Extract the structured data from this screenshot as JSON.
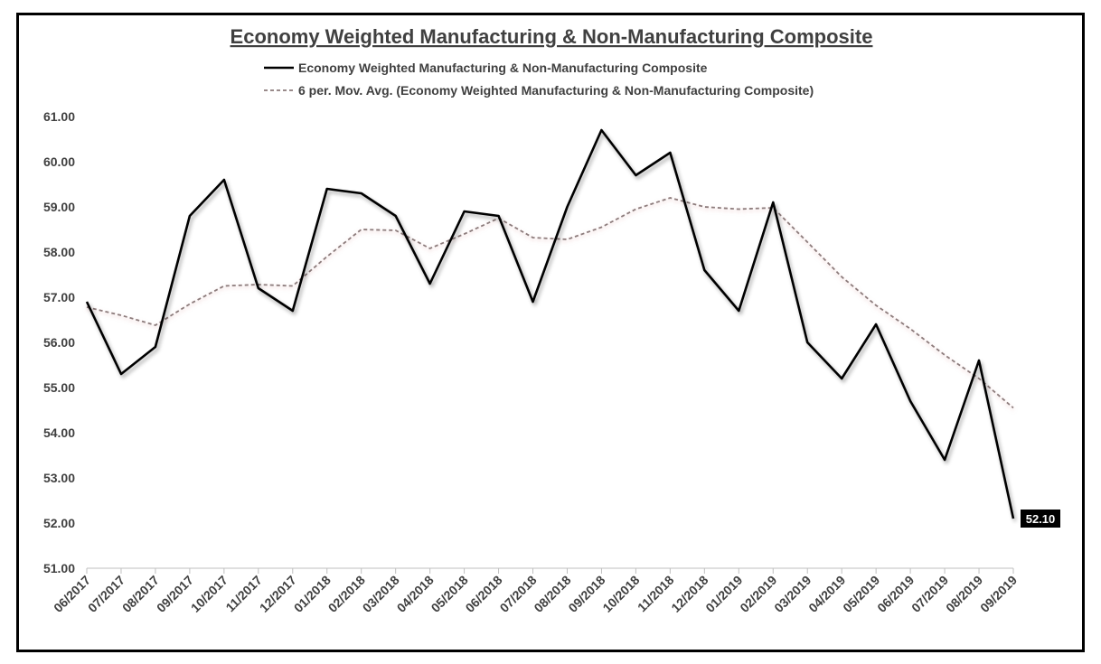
{
  "chart_data": {
    "type": "line",
    "title": "Economy Weighted Manufacturing & Non-Manufacturing Composite",
    "categories": [
      "06/2017",
      "07/2017",
      "08/2017",
      "09/2017",
      "10/2017",
      "11/2017",
      "12/2017",
      "01/2018",
      "02/2018",
      "03/2018",
      "04/2018",
      "05/2018",
      "06/2018",
      "07/2018",
      "08/2018",
      "09/2018",
      "10/2018",
      "11/2018",
      "12/2018",
      "01/2019",
      "02/2019",
      "03/2019",
      "04/2019",
      "05/2019",
      "06/2019",
      "07/2019",
      "08/2019",
      "09/2019"
    ],
    "series": [
      {
        "name": "Economy Weighted Manufacturing & Non-Manufacturing Composite",
        "style": "solid",
        "color": "#000000",
        "values": [
          56.9,
          55.3,
          55.9,
          58.8,
          59.6,
          57.2,
          56.7,
          59.4,
          59.3,
          58.8,
          57.3,
          58.9,
          58.8,
          56.9,
          59.0,
          60.7,
          59.7,
          60.2,
          57.6,
          56.7,
          59.1,
          56.0,
          55.2,
          56.4,
          54.7,
          53.4,
          55.6,
          52.1
        ]
      },
      {
        "name": "6 per. Mov. Avg. (Economy Weighted Manufacturing & Non-Manufacturing Composite)",
        "style": "dashed",
        "color": "#8c7b7b",
        "values": [
          56.78,
          56.6,
          56.38,
          56.85,
          57.25,
          57.28,
          57.25,
          57.9,
          58.5,
          58.48,
          58.08,
          58.4,
          58.75,
          58.32,
          58.28,
          58.55,
          58.95,
          59.2,
          59.0,
          58.95,
          58.98,
          58.22,
          57.45,
          56.82,
          56.3,
          55.72,
          55.2,
          54.55
        ]
      }
    ],
    "ylim": [
      51.0,
      61.0
    ],
    "yticks": [
      "51.00",
      "52.00",
      "53.00",
      "54.00",
      "55.00",
      "56.00",
      "57.00",
      "58.00",
      "59.00",
      "60.00",
      "61.00"
    ],
    "data_label": "52.10",
    "xlabel": "",
    "ylabel": "",
    "legend": "top-center"
  }
}
